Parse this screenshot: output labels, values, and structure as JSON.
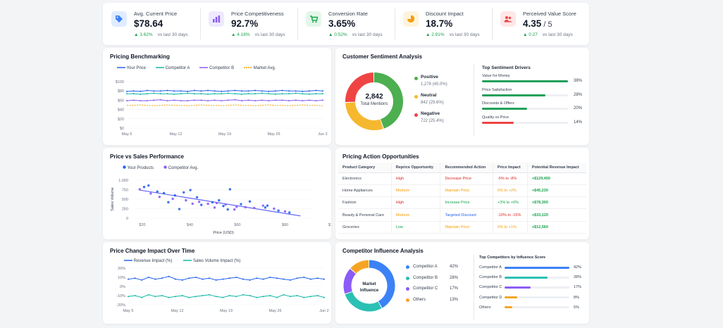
{
  "kpis": [
    {
      "label": "Avg. Current Price",
      "value": "$78.64",
      "value_sub": "",
      "delta": "3.62%",
      "vs": "vs last 30 days",
      "icon": "price-tag-icon",
      "color": "#3b82f6",
      "bg": "#e0ecff"
    },
    {
      "label": "Price Competitiveness",
      "value": "92.7%",
      "value_sub": "",
      "delta": "4.18%",
      "vs": "vs last 30 days",
      "icon": "bar-chart-icon",
      "color": "#8b5cf6",
      "bg": "#efe9ff"
    },
    {
      "label": "Conversion Rate",
      "value": "3.65%",
      "value_sub": "",
      "delta": "0.52%",
      "vs": "vs last 30 days",
      "icon": "cart-icon",
      "color": "#16a34a",
      "bg": "#e3f7e9"
    },
    {
      "label": "Discount Impact",
      "value": "18.7%",
      "value_sub": "",
      "delta": "2.91%",
      "vs": "vs last 30 days",
      "icon": "pie-icon",
      "color": "#f59e0b",
      "bg": "#fff3dc"
    },
    {
      "label": "Perceived Value Score",
      "value": "4.35",
      "value_sub": " / 5",
      "delta": "0.27",
      "vs": "vs last 30 days",
      "icon": "users-icon",
      "color": "#ef4444",
      "bg": "#fde7e7"
    }
  ],
  "benchmark": {
    "title": "Pricing Benchmarking",
    "legend": [
      "Your Price",
      "Competitor A",
      "Competitor B",
      "Market Avg."
    ],
    "colors": [
      "#2563eb",
      "#14b8a6",
      "#8b5cf6",
      "#f59e0b"
    ]
  },
  "sentiment": {
    "title": "Customer Sentiment Analysis",
    "center_value": "2,842",
    "center_label": "Total Mentions",
    "items": [
      {
        "label": "Positive",
        "detail": "1,278 (45.0%)",
        "color": "#4caf50"
      },
      {
        "label": "Neutral",
        "detail": "842 (29.6%)",
        "color": "#f5b82e"
      },
      {
        "label": "Negative",
        "detail": "722 (25.4%)",
        "color": "#ef4444"
      }
    ],
    "drivers_title": "Top Sentiment Drivers",
    "drivers": [
      {
        "label": "Value for Money",
        "pct": "38%",
        "value": 38,
        "color": "#22a05a"
      },
      {
        "label": "Price Satisfaction",
        "pct": "28%",
        "value": 28,
        "color": "#22a05a"
      },
      {
        "label": "Discounts & Offers",
        "pct": "20%",
        "value": 20,
        "color": "#22a05a"
      },
      {
        "label": "Quality vs Price",
        "pct": "14%",
        "value": 14,
        "color": "#ef4444"
      }
    ]
  },
  "price_sales": {
    "title": "Price vs Sales Performance",
    "legend": [
      "Your Products",
      "Competitor Avg."
    ],
    "colors": [
      "#2563eb",
      "#8b5cf6"
    ]
  },
  "actions": {
    "title": "Pricing Action Opportunities",
    "headers": [
      "Product Category",
      "Reprice Opportunity",
      "Recommended Action",
      "Price Impact",
      "Potential Revenue Impact"
    ],
    "rows": [
      {
        "category": "Electronics",
        "opportunity": "High",
        "opp_color": "#dc2626",
        "action": "Decrease Price",
        "action_color": "#dc2626",
        "impact": "-5% to -8%",
        "impact_color": "#dc2626",
        "revenue": "+$129,450"
      },
      {
        "category": "Home Appliances",
        "opportunity": "Medium",
        "opp_color": "#f59e0b",
        "action": "Maintain Price",
        "action_color": "#f59e0b",
        "impact": "0% to +2%",
        "impact_color": "#f59e0b",
        "revenue": "+$45,230"
      },
      {
        "category": "Fashion",
        "opportunity": "High",
        "opp_color": "#dc2626",
        "action": "Increase Price",
        "action_color": "#16a34a",
        "impact": "+3% to +6%",
        "impact_color": "#16a34a",
        "revenue": "+$78,300"
      },
      {
        "category": "Beauty & Personal Care",
        "opportunity": "Medium",
        "opp_color": "#f59e0b",
        "action": "Targeted Discount",
        "action_color": "#2563eb",
        "impact": "-10% to -15%",
        "impact_color": "#dc2626",
        "revenue": "+$33,120"
      },
      {
        "category": "Groceries",
        "opportunity": "Low",
        "opp_color": "#16a34a",
        "action": "Maintain Price",
        "action_color": "#f59e0b",
        "impact": "0% to +1%",
        "impact_color": "#f59e0b",
        "revenue": "+$12,560"
      }
    ]
  },
  "price_change": {
    "title": "Price Change Impact Over Time",
    "legend": [
      "Revenue Impact (%)",
      "Sales Volume Impact (%)"
    ],
    "colors": [
      "#2563eb",
      "#14b8a6"
    ]
  },
  "competitor": {
    "title": "Competitor Influence Analysis",
    "center_label_1": "Market",
    "center_label_2": "Influence",
    "items": [
      {
        "label": "Competitor A",
        "pct": "42%",
        "value": 42,
        "color": "#3b82f6"
      },
      {
        "label": "Competitor B",
        "pct": "28%",
        "value": 28,
        "color": "#2bc0b4"
      },
      {
        "label": "Competitor C",
        "pct": "17%",
        "value": 17,
        "color": "#8b5cf6"
      },
      {
        "label": "Others",
        "pct": "13%",
        "value": 13,
        "color": "#f5a524"
      }
    ],
    "bars_title": "Top Competitors by Influence Score",
    "bars": [
      {
        "label": "Competitor A",
        "pct": "42%",
        "value": 42,
        "color": "#3b82f6"
      },
      {
        "label": "Competitor B",
        "pct": "28%",
        "value": 28,
        "color": "#2bc0b4"
      },
      {
        "label": "Competitor C",
        "pct": "17%",
        "value": 17,
        "color": "#8b5cf6"
      },
      {
        "label": "Competitor D",
        "pct": "8%",
        "value": 8,
        "color": "#f5a524"
      },
      {
        "label": "Others",
        "pct": "5%",
        "value": 5,
        "color": "#f5a524"
      }
    ]
  },
  "chart_data": [
    {
      "type": "line",
      "title": "Pricing Benchmarking",
      "x_ticks": [
        "May 5",
        "May 12",
        "May 19",
        "May 26",
        "Jun 2"
      ],
      "y_ticks": [
        "$0",
        "$20",
        "$40",
        "$60",
        "$80",
        "$100"
      ],
      "ylim": [
        0,
        100
      ],
      "n_points": 30,
      "series": [
        {
          "name": "Your Price",
          "values": [
            79,
            80,
            79,
            81,
            80,
            80,
            81,
            80,
            80,
            79,
            81,
            80,
            81,
            80,
            79,
            80,
            81,
            80,
            80,
            81,
            80,
            79,
            80,
            81,
            80,
            80,
            79,
            80,
            81,
            80
          ]
        },
        {
          "name": "Competitor A",
          "values": [
            74,
            74,
            73,
            74,
            75,
            74,
            74,
            73,
            74,
            75,
            74,
            74,
            73,
            74,
            74,
            75,
            74,
            73,
            74,
            74,
            75,
            74,
            73,
            74,
            74,
            75,
            74,
            73,
            74,
            74
          ]
        },
        {
          "name": "Competitor B",
          "values": [
            59,
            60,
            59,
            59,
            60,
            61,
            59,
            60,
            59,
            59,
            60,
            60,
            59,
            60,
            59,
            60,
            61,
            59,
            60,
            59,
            60,
            59,
            60,
            60,
            59,
            60,
            59,
            60,
            59,
            60
          ]
        },
        {
          "name": "Market Avg.",
          "values": [
            49,
            49,
            50,
            49,
            48,
            49,
            50,
            49,
            49,
            48,
            49,
            50,
            49,
            49,
            48,
            49,
            50,
            49,
            49,
            48,
            49,
            50,
            49,
            49,
            48,
            49,
            50,
            49,
            49,
            48
          ]
        }
      ]
    },
    {
      "type": "scatter",
      "title": "Price vs Sales Performance",
      "xlabel": "Price (USD)",
      "ylabel": "Sales Volume",
      "x_ticks": [
        "$20",
        "$40",
        "$60",
        "$80",
        "$100"
      ],
      "y_ticks": [
        "0",
        "250",
        "500",
        "750",
        "1,000"
      ],
      "xlim": [
        20,
        100
      ],
      "ylim": [
        0,
        1000
      ],
      "series": [
        {
          "name": "Your Products",
          "points": [
            [
              24,
              820
            ],
            [
              26,
              860
            ],
            [
              30,
              700
            ],
            [
              33,
              660
            ],
            [
              38,
              600
            ],
            [
              42,
              680
            ],
            [
              45,
              740
            ],
            [
              48,
              550
            ],
            [
              55,
              420
            ],
            [
              58,
              470
            ],
            [
              60,
              320
            ],
            [
              63,
              760
            ],
            [
              68,
              370
            ],
            [
              72,
              440
            ],
            [
              79,
              280
            ],
            [
              85,
              200
            ],
            [
              90,
              150
            ],
            [
              40,
              240
            ],
            [
              50,
              350
            ],
            [
              35,
              420
            ],
            [
              62,
              230
            ],
            [
              80,
              330
            ]
          ]
        },
        {
          "name": "Competitor Avg.",
          "points": [
            [
              22,
              760
            ],
            [
              27,
              650
            ],
            [
              31,
              560
            ],
            [
              37,
              510
            ],
            [
              43,
              470
            ],
            [
              49,
              430
            ],
            [
              53,
              380
            ],
            [
              57,
              400
            ],
            [
              61,
              360
            ],
            [
              66,
              300
            ],
            [
              70,
              290
            ],
            [
              74,
              270
            ],
            [
              78,
              330
            ],
            [
              83,
              250
            ],
            [
              88,
              180
            ],
            [
              46,
              380
            ],
            [
              65,
              230
            ],
            [
              56,
              280
            ]
          ]
        }
      ],
      "trendline": [
        [
          22,
          740
        ],
        [
          95,
          60
        ]
      ]
    },
    {
      "type": "line",
      "title": "Price Change Impact Over Time",
      "x_ticks": [
        "May 5",
        "May 12",
        "May 19",
        "May 26",
        "Jun 2"
      ],
      "y_ticks": [
        "20%",
        "10%",
        "0%",
        "-10%",
        "-20%"
      ],
      "ylim": [
        -20,
        20
      ],
      "n_points": 30,
      "series": [
        {
          "name": "Revenue Impact (%)",
          "values": [
            8,
            9,
            7,
            10,
            8,
            9,
            11,
            8,
            7,
            9,
            10,
            8,
            9,
            7,
            8,
            9,
            10,
            8,
            7,
            9,
            8,
            10,
            9,
            8,
            7,
            9,
            10,
            8,
            9,
            8
          ]
        },
        {
          "name": "Sales Volume Impact (%)",
          "values": [
            -11,
            -10,
            -12,
            -9,
            -11,
            -10,
            -12,
            -11,
            -10,
            -12,
            -11,
            -10,
            -9,
            -11,
            -12,
            -10,
            -11,
            -9,
            -10,
            -12,
            -11,
            -10,
            -12,
            -9,
            -11,
            -10,
            -12,
            -11,
            -10,
            -12
          ]
        }
      ]
    },
    {
      "type": "pie",
      "title": "Customer Sentiment Analysis",
      "categories": [
        "Positive",
        "Neutral",
        "Negative"
      ],
      "values": [
        1278,
        842,
        722
      ]
    },
    {
      "type": "pie",
      "title": "Competitor Influence Analysis",
      "categories": [
        "Competitor A",
        "Competitor B",
        "Competitor C",
        "Others"
      ],
      "values": [
        42,
        28,
        17,
        13
      ]
    }
  ]
}
